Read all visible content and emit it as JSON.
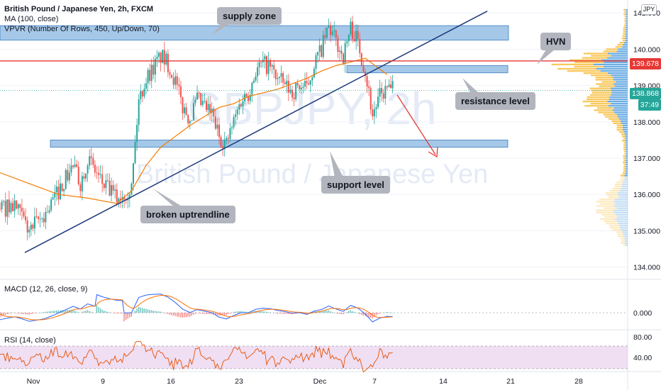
{
  "legend": {
    "title": "British Pound / Japanese Yen, 2h, FXCM",
    "ma": "MA (100, close)",
    "vpvr": "VPVR (Number Of Rows, 450, Up/Down, 70)"
  },
  "watermark": {
    "symbol": "GBPJPY, 2h",
    "name": "British Pound / Japanese Yen"
  },
  "currency_button": "JPY",
  "annotations": {
    "supply_zone": "supply zone",
    "hvn": "HVN",
    "resistance_level": "resistance level",
    "support_level": "support level",
    "broken_uptrendline": "broken uptrendline"
  },
  "price_tags": {
    "hvn_line": "139.678",
    "last_price": "138.868",
    "countdown": "37:49"
  },
  "macd_label": "MACD (12, 26, close, 9)",
  "rsi_label": "RSI (14, close)",
  "colors": {
    "up": "#26a69a",
    "down": "#ef5350",
    "ma": "#f57c00",
    "trendline": "#1e3a7b",
    "zone": "#5b9bd5",
    "hvn_line": "#e53935",
    "last_price": "#26a69a",
    "vp_up": "#f8c24a",
    "vp_down": "#5ba3e0",
    "rsi_band": "#e1bee7",
    "macd_line": "#2962ff",
    "signal_line": "#ff6d00"
  },
  "chart_data": [
    {
      "type": "candlestick",
      "title": "British Pound / Japanese Yen, 2h, FXCM",
      "y_axis_ticks": [
        "141.000",
        "140.000",
        "139.000",
        "138.000",
        "137.000",
        "136.000",
        "135.000",
        "134.000"
      ],
      "x_axis_ticks": [
        "Nov",
        "9",
        "16",
        "23",
        "Dec",
        "7",
        "14",
        "21",
        "28"
      ],
      "ylim": [
        133.7,
        141.2
      ],
      "close_path": [
        [
          0,
          135.6
        ],
        [
          2,
          135.7
        ],
        [
          4,
          135.0
        ],
        [
          6,
          135.4
        ],
        [
          8,
          136.1
        ],
        [
          10,
          136.8
        ],
        [
          11,
          136.3
        ],
        [
          12,
          137.0
        ],
        [
          14,
          136.3
        ],
        [
          16,
          135.9
        ],
        [
          18,
          136.2
        ],
        [
          19,
          138.6
        ],
        [
          20,
          139.2
        ],
        [
          21,
          139.5
        ],
        [
          22,
          139.8
        ],
        [
          23,
          139.6
        ],
        [
          24,
          139.1
        ],
        [
          25,
          138.4
        ],
        [
          26,
          138.1
        ],
        [
          27,
          138.6
        ],
        [
          28,
          138.4
        ],
        [
          29,
          138.2
        ],
        [
          30,
          137.6
        ],
        [
          31,
          137.4
        ],
        [
          32,
          138.0
        ],
        [
          33,
          138.6
        ],
        [
          34,
          138.8
        ],
        [
          35,
          139.4
        ],
        [
          36,
          139.6
        ],
        [
          37,
          139.5
        ],
        [
          38,
          139.2
        ],
        [
          39,
          139.0
        ],
        [
          40,
          138.8
        ],
        [
          41,
          139.0
        ],
        [
          42,
          138.9
        ],
        [
          43,
          139.6
        ],
        [
          44,
          140.0
        ],
        [
          45,
          140.6
        ],
        [
          46,
          140.2
        ],
        [
          47,
          139.8
        ],
        [
          48,
          140.6
        ],
        [
          49,
          140.2
        ],
        [
          50,
          139.4
        ],
        [
          51,
          138.2
        ],
        [
          52,
          138.7
        ],
        [
          53,
          138.9
        ]
      ],
      "ma_100_path": [
        [
          0,
          136.6
        ],
        [
          4,
          136.3
        ],
        [
          8,
          136.0
        ],
        [
          12,
          135.9
        ],
        [
          16,
          135.75
        ],
        [
          18,
          136.1
        ],
        [
          20,
          136.8
        ],
        [
          22,
          137.3
        ],
        [
          24,
          137.6
        ],
        [
          26,
          137.9
        ],
        [
          28,
          138.15
        ],
        [
          30,
          138.4
        ],
        [
          32,
          138.5
        ],
        [
          34,
          138.7
        ],
        [
          36,
          138.8
        ],
        [
          38,
          138.9
        ],
        [
          40,
          139.05
        ],
        [
          42,
          139.2
        ],
        [
          44,
          139.4
        ],
        [
          46,
          139.55
        ],
        [
          48,
          139.65
        ],
        [
          50,
          139.75
        ],
        [
          51,
          139.6
        ],
        [
          53,
          139.3
        ]
      ],
      "zones": {
        "supply": [
          140.25,
          140.65
        ],
        "resistance": [
          139.35,
          139.55
        ],
        "support": [
          137.3,
          137.5
        ]
      },
      "hvn_level": 139.678,
      "last_price": 138.868,
      "trendline": {
        "from": [
          0,
          134.4
        ],
        "to": [
          57,
          141.05
        ]
      }
    },
    {
      "type": "line",
      "title": "MACD (12, 26, close, 9)",
      "y_axis_ticks": [
        "0.000"
      ]
    },
    {
      "type": "line",
      "title": "RSI (14, close)",
      "y_axis_ticks": [
        "80.00",
        "40.00"
      ]
    }
  ]
}
